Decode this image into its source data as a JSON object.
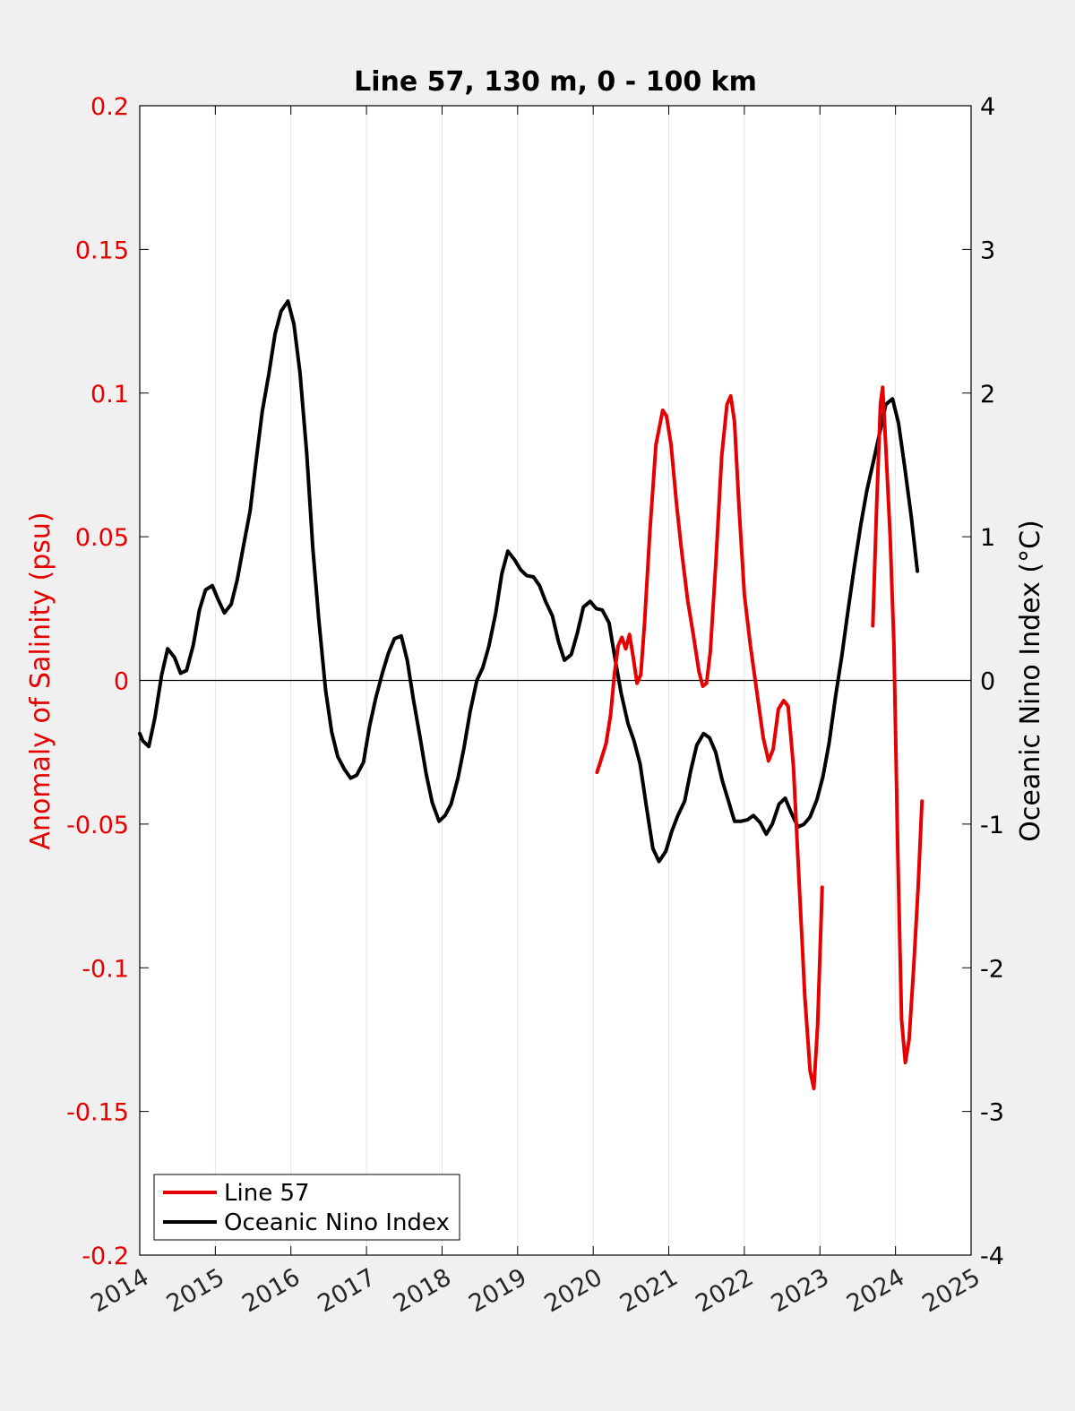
{
  "chart_data": {
    "type": "line",
    "title": "Line 57, 130 m, 0 - 100 km",
    "xlabel": "",
    "y_left": {
      "label": "Anomaly of Salinity (psu)",
      "range": [
        -0.2,
        0.2
      ],
      "ticks": [
        -0.2,
        -0.15,
        -0.1,
        -0.05,
        0,
        0.05,
        0.1,
        0.15,
        0.2
      ],
      "tick_labels": [
        "-0.2",
        "-0.15",
        "-0.1",
        "-0.05",
        "0",
        "0.05",
        "0.1",
        "0.15",
        "0.2"
      ],
      "color": "#e60000"
    },
    "y_right": {
      "label": "Oceanic Nino Index (°C)",
      "range": [
        -4,
        4
      ],
      "ticks": [
        -4,
        -3,
        -2,
        -1,
        0,
        1,
        2,
        3,
        4
      ],
      "tick_labels": [
        "-4",
        "-3",
        "-2",
        "-1",
        "0",
        "1",
        "2",
        "3",
        "4"
      ],
      "color": "#000000"
    },
    "x_axis": {
      "range": [
        2014,
        2025
      ],
      "ticks": [
        2014,
        2015,
        2016,
        2017,
        2018,
        2019,
        2020,
        2021,
        2022,
        2023,
        2024,
        2025
      ],
      "tick_labels": [
        "2014",
        "2015",
        "2016",
        "2017",
        "2018",
        "2019",
        "2020",
        "2021",
        "2022",
        "2023",
        "2024",
        "2025"
      ],
      "grid": true
    },
    "zero_line": true,
    "legend": {
      "position": "bottom-left",
      "entries": [
        {
          "label": "Line 57",
          "color": "#e60000"
        },
        {
          "label": "Oceanic Nino Index",
          "color": "#000000"
        }
      ]
    },
    "series": [
      {
        "name": "Line 57",
        "axis": "left",
        "color": "#e60000",
        "segments": [
          [
            [
              2020.05,
              -0.032
            ],
            [
              2020.1,
              -0.028
            ],
            [
              2020.17,
              -0.022
            ],
            [
              2020.23,
              -0.012
            ],
            [
              2020.28,
              0.002
            ],
            [
              2020.33,
              0.012
            ],
            [
              2020.38,
              0.015
            ],
            [
              2020.43,
              0.011
            ],
            [
              2020.48,
              0.016
            ],
            [
              2020.53,
              0.008
            ],
            [
              2020.58,
              -0.001
            ],
            [
              2020.63,
              0.002
            ],
            [
              2020.68,
              0.02
            ],
            [
              2020.75,
              0.052
            ],
            [
              2020.83,
              0.082
            ],
            [
              2020.92,
              0.094
            ],
            [
              2020.97,
              0.092
            ],
            [
              2021.03,
              0.082
            ],
            [
              2021.1,
              0.062
            ],
            [
              2021.17,
              0.045
            ],
            [
              2021.25,
              0.028
            ],
            [
              2021.33,
              0.015
            ],
            [
              2021.4,
              0.003
            ],
            [
              2021.45,
              -0.002
            ],
            [
              2021.5,
              -0.001
            ],
            [
              2021.55,
              0.01
            ],
            [
              2021.62,
              0.04
            ],
            [
              2021.7,
              0.078
            ],
            [
              2021.77,
              0.096
            ],
            [
              2021.82,
              0.099
            ],
            [
              2021.87,
              0.09
            ],
            [
              2021.93,
              0.06
            ],
            [
              2022.0,
              0.03
            ],
            [
              2022.08,
              0.012
            ],
            [
              2022.17,
              -0.005
            ],
            [
              2022.25,
              -0.02
            ],
            [
              2022.32,
              -0.028
            ],
            [
              2022.38,
              -0.024
            ],
            [
              2022.45,
              -0.01
            ],
            [
              2022.52,
              -0.007
            ],
            [
              2022.58,
              -0.009
            ],
            [
              2022.65,
              -0.03
            ],
            [
              2022.72,
              -0.068
            ],
            [
              2022.8,
              -0.11
            ],
            [
              2022.87,
              -0.136
            ],
            [
              2022.92,
              -0.142
            ],
            [
              2022.97,
              -0.12
            ],
            [
              2023.03,
              -0.072
            ]
          ],
          [
            [
              2023.7,
              0.019
            ],
            [
              2023.75,
              0.06
            ],
            [
              2023.8,
              0.096
            ],
            [
              2023.83,
              0.102
            ],
            [
              2023.87,
              0.082
            ],
            [
              2023.93,
              0.05
            ],
            [
              2023.98,
              0.012
            ],
            [
              2024.03,
              -0.06
            ],
            [
              2024.08,
              -0.118
            ],
            [
              2024.13,
              -0.133
            ],
            [
              2024.18,
              -0.125
            ],
            [
              2024.24,
              -0.1
            ],
            [
              2024.3,
              -0.072
            ],
            [
              2024.35,
              -0.042
            ]
          ]
        ]
      },
      {
        "name": "Oceanic Nino Index",
        "axis": "right",
        "color": "#000000",
        "segments": [
          [
            [
              2014.0,
              -0.37
            ],
            [
              2014.04,
              -0.42
            ],
            [
              2014.12,
              -0.46
            ],
            [
              2014.2,
              -0.26
            ],
            [
              2014.29,
              0.04
            ],
            [
              2014.37,
              0.22
            ],
            [
              2014.46,
              0.16
            ],
            [
              2014.54,
              0.05
            ],
            [
              2014.62,
              0.07
            ],
            [
              2014.71,
              0.25
            ],
            [
              2014.79,
              0.49
            ],
            [
              2014.87,
              0.63
            ],
            [
              2014.96,
              0.66
            ],
            [
              2015.04,
              0.56
            ],
            [
              2015.12,
              0.47
            ],
            [
              2015.21,
              0.53
            ],
            [
              2015.29,
              0.7
            ],
            [
              2015.37,
              0.93
            ],
            [
              2015.46,
              1.18
            ],
            [
              2015.54,
              1.53
            ],
            [
              2015.62,
              1.87
            ],
            [
              2015.71,
              2.14
            ],
            [
              2015.79,
              2.41
            ],
            [
              2015.87,
              2.57
            ],
            [
              2015.96,
              2.64
            ],
            [
              2016.04,
              2.48
            ],
            [
              2016.12,
              2.14
            ],
            [
              2016.21,
              1.58
            ],
            [
              2016.29,
              0.92
            ],
            [
              2016.37,
              0.42
            ],
            [
              2016.46,
              -0.07
            ],
            [
              2016.54,
              -0.36
            ],
            [
              2016.62,
              -0.53
            ],
            [
              2016.71,
              -0.62
            ],
            [
              2016.79,
              -0.68
            ],
            [
              2016.87,
              -0.66
            ],
            [
              2016.96,
              -0.57
            ],
            [
              2017.04,
              -0.32
            ],
            [
              2017.12,
              -0.13
            ],
            [
              2017.21,
              0.05
            ],
            [
              2017.29,
              0.19
            ],
            [
              2017.37,
              0.29
            ],
            [
              2017.46,
              0.31
            ],
            [
              2017.54,
              0.14
            ],
            [
              2017.62,
              -0.13
            ],
            [
              2017.71,
              -0.4
            ],
            [
              2017.79,
              -0.65
            ],
            [
              2017.87,
              -0.85
            ],
            [
              2017.96,
              -0.98
            ],
            [
              2018.04,
              -0.94
            ],
            [
              2018.12,
              -0.86
            ],
            [
              2018.21,
              -0.68
            ],
            [
              2018.29,
              -0.47
            ],
            [
              2018.37,
              -0.22
            ],
            [
              2018.46,
              0.0
            ],
            [
              2018.54,
              0.09
            ],
            [
              2018.62,
              0.24
            ],
            [
              2018.71,
              0.47
            ],
            [
              2018.79,
              0.74
            ],
            [
              2018.87,
              0.9
            ],
            [
              2018.96,
              0.84
            ],
            [
              2019.04,
              0.77
            ],
            [
              2019.12,
              0.73
            ],
            [
              2019.21,
              0.72
            ],
            [
              2019.29,
              0.66
            ],
            [
              2019.37,
              0.55
            ],
            [
              2019.46,
              0.45
            ],
            [
              2019.54,
              0.27
            ],
            [
              2019.62,
              0.14
            ],
            [
              2019.71,
              0.18
            ],
            [
              2019.79,
              0.33
            ],
            [
              2019.87,
              0.51
            ],
            [
              2019.96,
              0.55
            ],
            [
              2020.04,
              0.5
            ],
            [
              2020.12,
              0.49
            ],
            [
              2020.21,
              0.4
            ],
            [
              2020.29,
              0.15
            ],
            [
              2020.37,
              -0.09
            ],
            [
              2020.46,
              -0.3
            ],
            [
              2020.54,
              -0.42
            ],
            [
              2020.62,
              -0.58
            ],
            [
              2020.71,
              -0.9
            ],
            [
              2020.79,
              -1.17
            ],
            [
              2020.87,
              -1.26
            ],
            [
              2020.96,
              -1.19
            ],
            [
              2021.04,
              -1.05
            ],
            [
              2021.12,
              -0.94
            ],
            [
              2021.21,
              -0.84
            ],
            [
              2021.29,
              -0.63
            ],
            [
              2021.37,
              -0.45
            ],
            [
              2021.46,
              -0.37
            ],
            [
              2021.54,
              -0.4
            ],
            [
              2021.62,
              -0.5
            ],
            [
              2021.71,
              -0.7
            ],
            [
              2021.79,
              -0.84
            ],
            [
              2021.87,
              -0.98
            ],
            [
              2021.96,
              -0.98
            ],
            [
              2022.04,
              -0.97
            ],
            [
              2022.12,
              -0.94
            ],
            [
              2022.21,
              -0.99
            ],
            [
              2022.29,
              -1.07
            ],
            [
              2022.37,
              -1.0
            ],
            [
              2022.46,
              -0.86
            ],
            [
              2022.54,
              -0.82
            ],
            [
              2022.62,
              -0.92
            ],
            [
              2022.71,
              -1.02
            ],
            [
              2022.79,
              -1.0
            ],
            [
              2022.87,
              -0.95
            ],
            [
              2022.96,
              -0.83
            ],
            [
              2023.04,
              -0.67
            ],
            [
              2023.12,
              -0.44
            ],
            [
              2023.21,
              -0.1
            ],
            [
              2023.29,
              0.17
            ],
            [
              2023.37,
              0.48
            ],
            [
              2023.46,
              0.81
            ],
            [
              2023.54,
              1.08
            ],
            [
              2023.62,
              1.32
            ],
            [
              2023.71,
              1.53
            ],
            [
              2023.79,
              1.72
            ],
            [
              2023.87,
              1.92
            ],
            [
              2023.96,
              1.96
            ],
            [
              2024.04,
              1.79
            ],
            [
              2024.12,
              1.49
            ],
            [
              2024.21,
              1.13
            ],
            [
              2024.29,
              0.76
            ]
          ]
        ]
      }
    ]
  }
}
